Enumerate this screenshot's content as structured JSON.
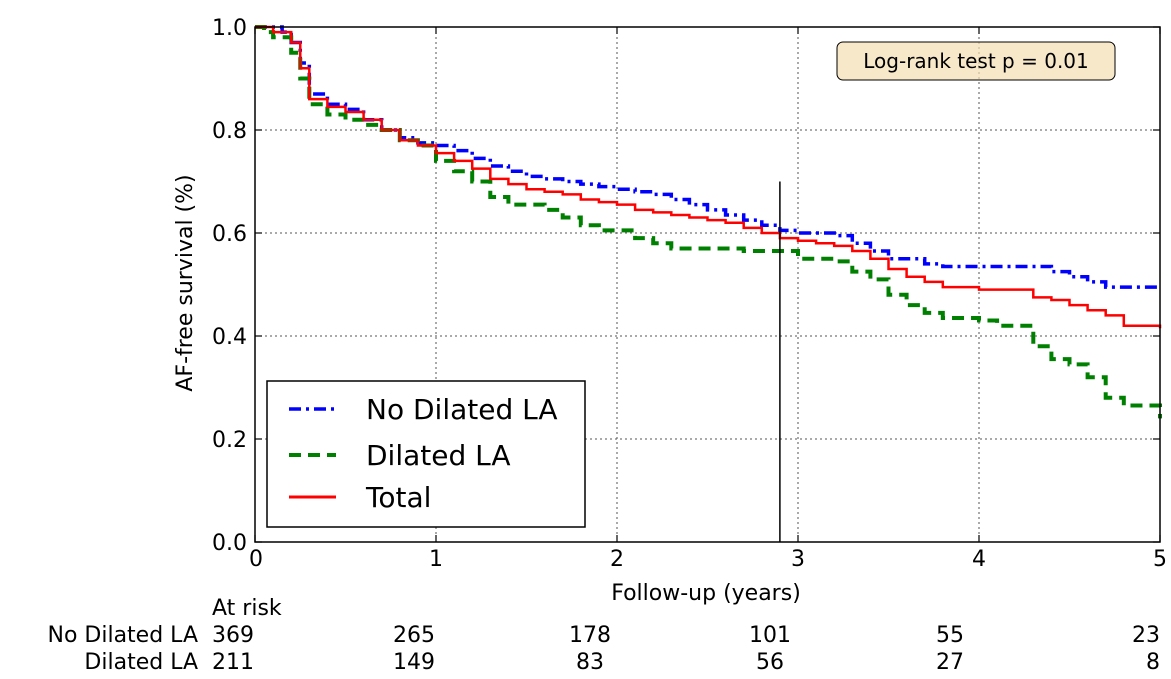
{
  "chart_data": {
    "type": "line",
    "subtype": "kaplan-meier",
    "title": "",
    "xlabel": "Follow-up (years)",
    "ylabel": "AF-free survival (%)",
    "xlim": [
      0,
      5
    ],
    "ylim": [
      0,
      1
    ],
    "x_ticks": [
      "0",
      "1",
      "2",
      "3",
      "4",
      "5"
    ],
    "y_ticks": [
      "0.0",
      "0.2",
      "0.4",
      "0.6",
      "0.8",
      "1.0"
    ],
    "grid": true,
    "legend_position": "bottom-left",
    "annotation": "Log-rank test p = 0.01",
    "vertical_line_x": 2.9,
    "series": [
      {
        "name": "No Dilated LA",
        "color": "#0000ff",
        "style": "dashdot",
        "points": [
          [
            0,
            1.0
          ],
          [
            0.1,
            1.0
          ],
          [
            0.15,
            0.99
          ],
          [
            0.2,
            0.97
          ],
          [
            0.25,
            0.93
          ],
          [
            0.3,
            0.87
          ],
          [
            0.4,
            0.85
          ],
          [
            0.5,
            0.84
          ],
          [
            0.6,
            0.82
          ],
          [
            0.7,
            0.8
          ],
          [
            0.8,
            0.785
          ],
          [
            0.9,
            0.775
          ],
          [
            1.0,
            0.77
          ],
          [
            1.1,
            0.76
          ],
          [
            1.2,
            0.745
          ],
          [
            1.3,
            0.73
          ],
          [
            1.4,
            0.72
          ],
          [
            1.5,
            0.71
          ],
          [
            1.6,
            0.705
          ],
          [
            1.7,
            0.7
          ],
          [
            1.8,
            0.695
          ],
          [
            1.9,
            0.69
          ],
          [
            2.0,
            0.685
          ],
          [
            2.1,
            0.68
          ],
          [
            2.2,
            0.675
          ],
          [
            2.3,
            0.665
          ],
          [
            2.4,
            0.655
          ],
          [
            2.5,
            0.645
          ],
          [
            2.6,
            0.635
          ],
          [
            2.7,
            0.625
          ],
          [
            2.8,
            0.615
          ],
          [
            2.9,
            0.605
          ],
          [
            3.0,
            0.6
          ],
          [
            3.1,
            0.6
          ],
          [
            3.2,
            0.595
          ],
          [
            3.3,
            0.58
          ],
          [
            3.4,
            0.565
          ],
          [
            3.5,
            0.55
          ],
          [
            3.6,
            0.55
          ],
          [
            3.7,
            0.54
          ],
          [
            3.8,
            0.535
          ],
          [
            4.0,
            0.535
          ],
          [
            4.2,
            0.535
          ],
          [
            4.4,
            0.525
          ],
          [
            4.5,
            0.515
          ],
          [
            4.6,
            0.505
          ],
          [
            4.7,
            0.495
          ],
          [
            5.0,
            0.495
          ]
        ]
      },
      {
        "name": "Dilated LA",
        "color": "#008000",
        "style": "dashed",
        "points": [
          [
            0,
            1.0
          ],
          [
            0.05,
            0.99
          ],
          [
            0.1,
            0.98
          ],
          [
            0.2,
            0.95
          ],
          [
            0.25,
            0.9
          ],
          [
            0.3,
            0.85
          ],
          [
            0.4,
            0.83
          ],
          [
            0.5,
            0.82
          ],
          [
            0.6,
            0.81
          ],
          [
            0.7,
            0.8
          ],
          [
            0.8,
            0.78
          ],
          [
            0.9,
            0.77
          ],
          [
            1.0,
            0.74
          ],
          [
            1.1,
            0.72
          ],
          [
            1.2,
            0.7
          ],
          [
            1.3,
            0.67
          ],
          [
            1.4,
            0.655
          ],
          [
            1.6,
            0.645
          ],
          [
            1.7,
            0.63
          ],
          [
            1.8,
            0.615
          ],
          [
            1.9,
            0.605
          ],
          [
            2.0,
            0.605
          ],
          [
            2.1,
            0.59
          ],
          [
            2.2,
            0.58
          ],
          [
            2.3,
            0.57
          ],
          [
            2.5,
            0.57
          ],
          [
            2.7,
            0.565
          ],
          [
            2.9,
            0.565
          ],
          [
            3.0,
            0.55
          ],
          [
            3.2,
            0.545
          ],
          [
            3.3,
            0.525
          ],
          [
            3.4,
            0.51
          ],
          [
            3.5,
            0.48
          ],
          [
            3.6,
            0.46
          ],
          [
            3.7,
            0.445
          ],
          [
            3.8,
            0.435
          ],
          [
            4.0,
            0.43
          ],
          [
            4.1,
            0.42
          ],
          [
            4.25,
            0.42
          ],
          [
            4.3,
            0.38
          ],
          [
            4.4,
            0.355
          ],
          [
            4.5,
            0.345
          ],
          [
            4.6,
            0.32
          ],
          [
            4.7,
            0.28
          ],
          [
            4.8,
            0.265
          ],
          [
            5.0,
            0.24
          ]
        ]
      },
      {
        "name": "Total",
        "color": "#ff0000",
        "style": "solid",
        "points": [
          [
            0,
            1.0
          ],
          [
            0.1,
            0.99
          ],
          [
            0.2,
            0.97
          ],
          [
            0.25,
            0.92
          ],
          [
            0.3,
            0.86
          ],
          [
            0.4,
            0.845
          ],
          [
            0.5,
            0.835
          ],
          [
            0.6,
            0.82
          ],
          [
            0.7,
            0.8
          ],
          [
            0.8,
            0.78
          ],
          [
            0.9,
            0.77
          ],
          [
            1.0,
            0.755
          ],
          [
            1.1,
            0.74
          ],
          [
            1.2,
            0.725
          ],
          [
            1.3,
            0.705
          ],
          [
            1.4,
            0.695
          ],
          [
            1.5,
            0.685
          ],
          [
            1.6,
            0.68
          ],
          [
            1.7,
            0.675
          ],
          [
            1.8,
            0.665
          ],
          [
            1.9,
            0.66
          ],
          [
            2.0,
            0.655
          ],
          [
            2.1,
            0.645
          ],
          [
            2.2,
            0.64
          ],
          [
            2.3,
            0.635
          ],
          [
            2.4,
            0.63
          ],
          [
            2.5,
            0.625
          ],
          [
            2.6,
            0.62
          ],
          [
            2.7,
            0.61
          ],
          [
            2.8,
            0.6
          ],
          [
            2.9,
            0.59
          ],
          [
            3.0,
            0.585
          ],
          [
            3.1,
            0.58
          ],
          [
            3.2,
            0.575
          ],
          [
            3.3,
            0.565
          ],
          [
            3.4,
            0.55
          ],
          [
            3.5,
            0.53
          ],
          [
            3.6,
            0.515
          ],
          [
            3.7,
            0.505
          ],
          [
            3.8,
            0.495
          ],
          [
            4.0,
            0.49
          ],
          [
            4.1,
            0.49
          ],
          [
            4.2,
            0.49
          ],
          [
            4.3,
            0.475
          ],
          [
            4.4,
            0.47
          ],
          [
            4.5,
            0.46
          ],
          [
            4.6,
            0.45
          ],
          [
            4.7,
            0.44
          ],
          [
            4.8,
            0.42
          ],
          [
            5.0,
            0.415
          ]
        ]
      }
    ],
    "at_risk": {
      "header": "At risk",
      "rows": [
        {
          "label": "No Dilated LA",
          "values": [
            "369",
            "265",
            "178",
            "101",
            "55",
            "23"
          ]
        },
        {
          "label": "Dilated LA",
          "values": [
            "211",
            "149",
            "83",
            "56",
            "27",
            "8"
          ]
        }
      ]
    }
  }
}
